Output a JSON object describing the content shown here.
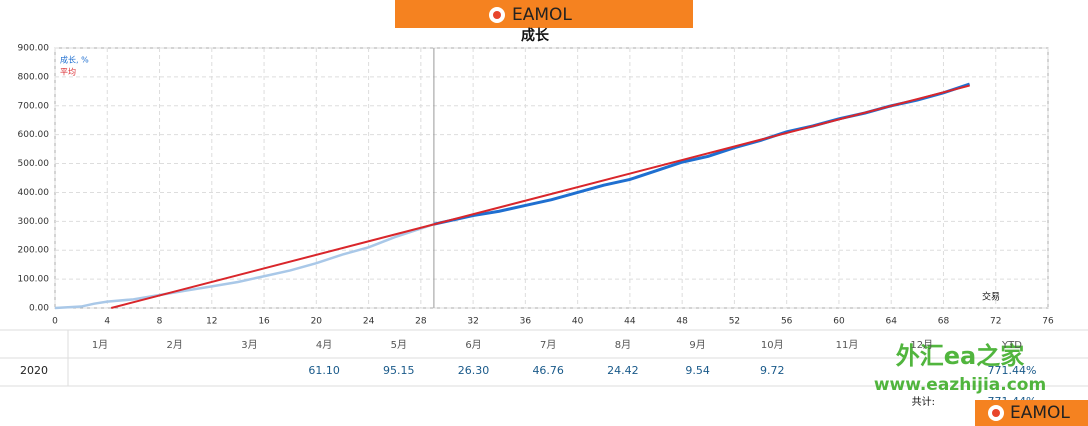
{
  "banner": {
    "logo": "EAMOL"
  },
  "chart_data": {
    "type": "line",
    "title": "成长",
    "x_axis_label": "交易",
    "xlim": [
      0,
      76
    ],
    "xticks": [
      0,
      4,
      8,
      12,
      16,
      20,
      24,
      28,
      32,
      36,
      40,
      44,
      48,
      52,
      56,
      60,
      64,
      68,
      72,
      76
    ],
    "ylim": [
      0,
      900
    ],
    "yticks": [
      {
        "value": 0,
        "label": "0.00"
      },
      {
        "value": 100,
        "label": "100.00"
      },
      {
        "value": 200,
        "label": "200.00"
      },
      {
        "value": 300,
        "label": "300.00"
      },
      {
        "value": 400,
        "label": "400.00"
      },
      {
        "value": 500,
        "label": "500.00"
      },
      {
        "value": 600,
        "label": "600.00"
      },
      {
        "value": 700,
        "label": "700.00"
      },
      {
        "value": 800,
        "label": "800.00"
      },
      {
        "value": 900,
        "label": "900.00"
      }
    ],
    "grid": true,
    "legend": "top-left",
    "vline_x": 29,
    "series": [
      {
        "name": "成长, %",
        "color": "#1f6fd0",
        "past_color": "#a9c8e8",
        "x": [
          0,
          2,
          3,
          4,
          6,
          8,
          10,
          12,
          14,
          16,
          18,
          20,
          22,
          24,
          26,
          28,
          29,
          32,
          34,
          36,
          38,
          40,
          42,
          44,
          46,
          48,
          50,
          52,
          54,
          56,
          58,
          60,
          62,
          64,
          66,
          68,
          70
        ],
        "values": [
          0,
          5,
          15,
          22,
          30,
          45,
          60,
          75,
          90,
          110,
          130,
          155,
          185,
          210,
          245,
          275,
          290,
          320,
          335,
          355,
          375,
          400,
          425,
          445,
          475,
          505,
          525,
          555,
          580,
          610,
          630,
          655,
          675,
          700,
          720,
          745,
          775
        ]
      },
      {
        "name": "平均",
        "color": "#d9262b",
        "x": [
          4.3,
          70
        ],
        "values": [
          0,
          770
        ]
      }
    ]
  },
  "table": {
    "headers": [
      "1月",
      "2月",
      "3月",
      "4月",
      "5月",
      "6月",
      "7月",
      "8月",
      "9月",
      "10月",
      "11月",
      "12月",
      "YTD"
    ],
    "rows": [
      {
        "year": "2020",
        "cells": [
          null,
          null,
          null,
          "61.10",
          "95.15",
          "26.30",
          "46.76",
          "24.42",
          "9.54",
          "9.72",
          null,
          null,
          "771.44%"
        ]
      }
    ],
    "total_label": "共计:",
    "total": "771.44%"
  },
  "watermark": {
    "site_name": "外汇ea之家",
    "url": "www.eazhijia.com",
    "logo": "EAMOL"
  }
}
